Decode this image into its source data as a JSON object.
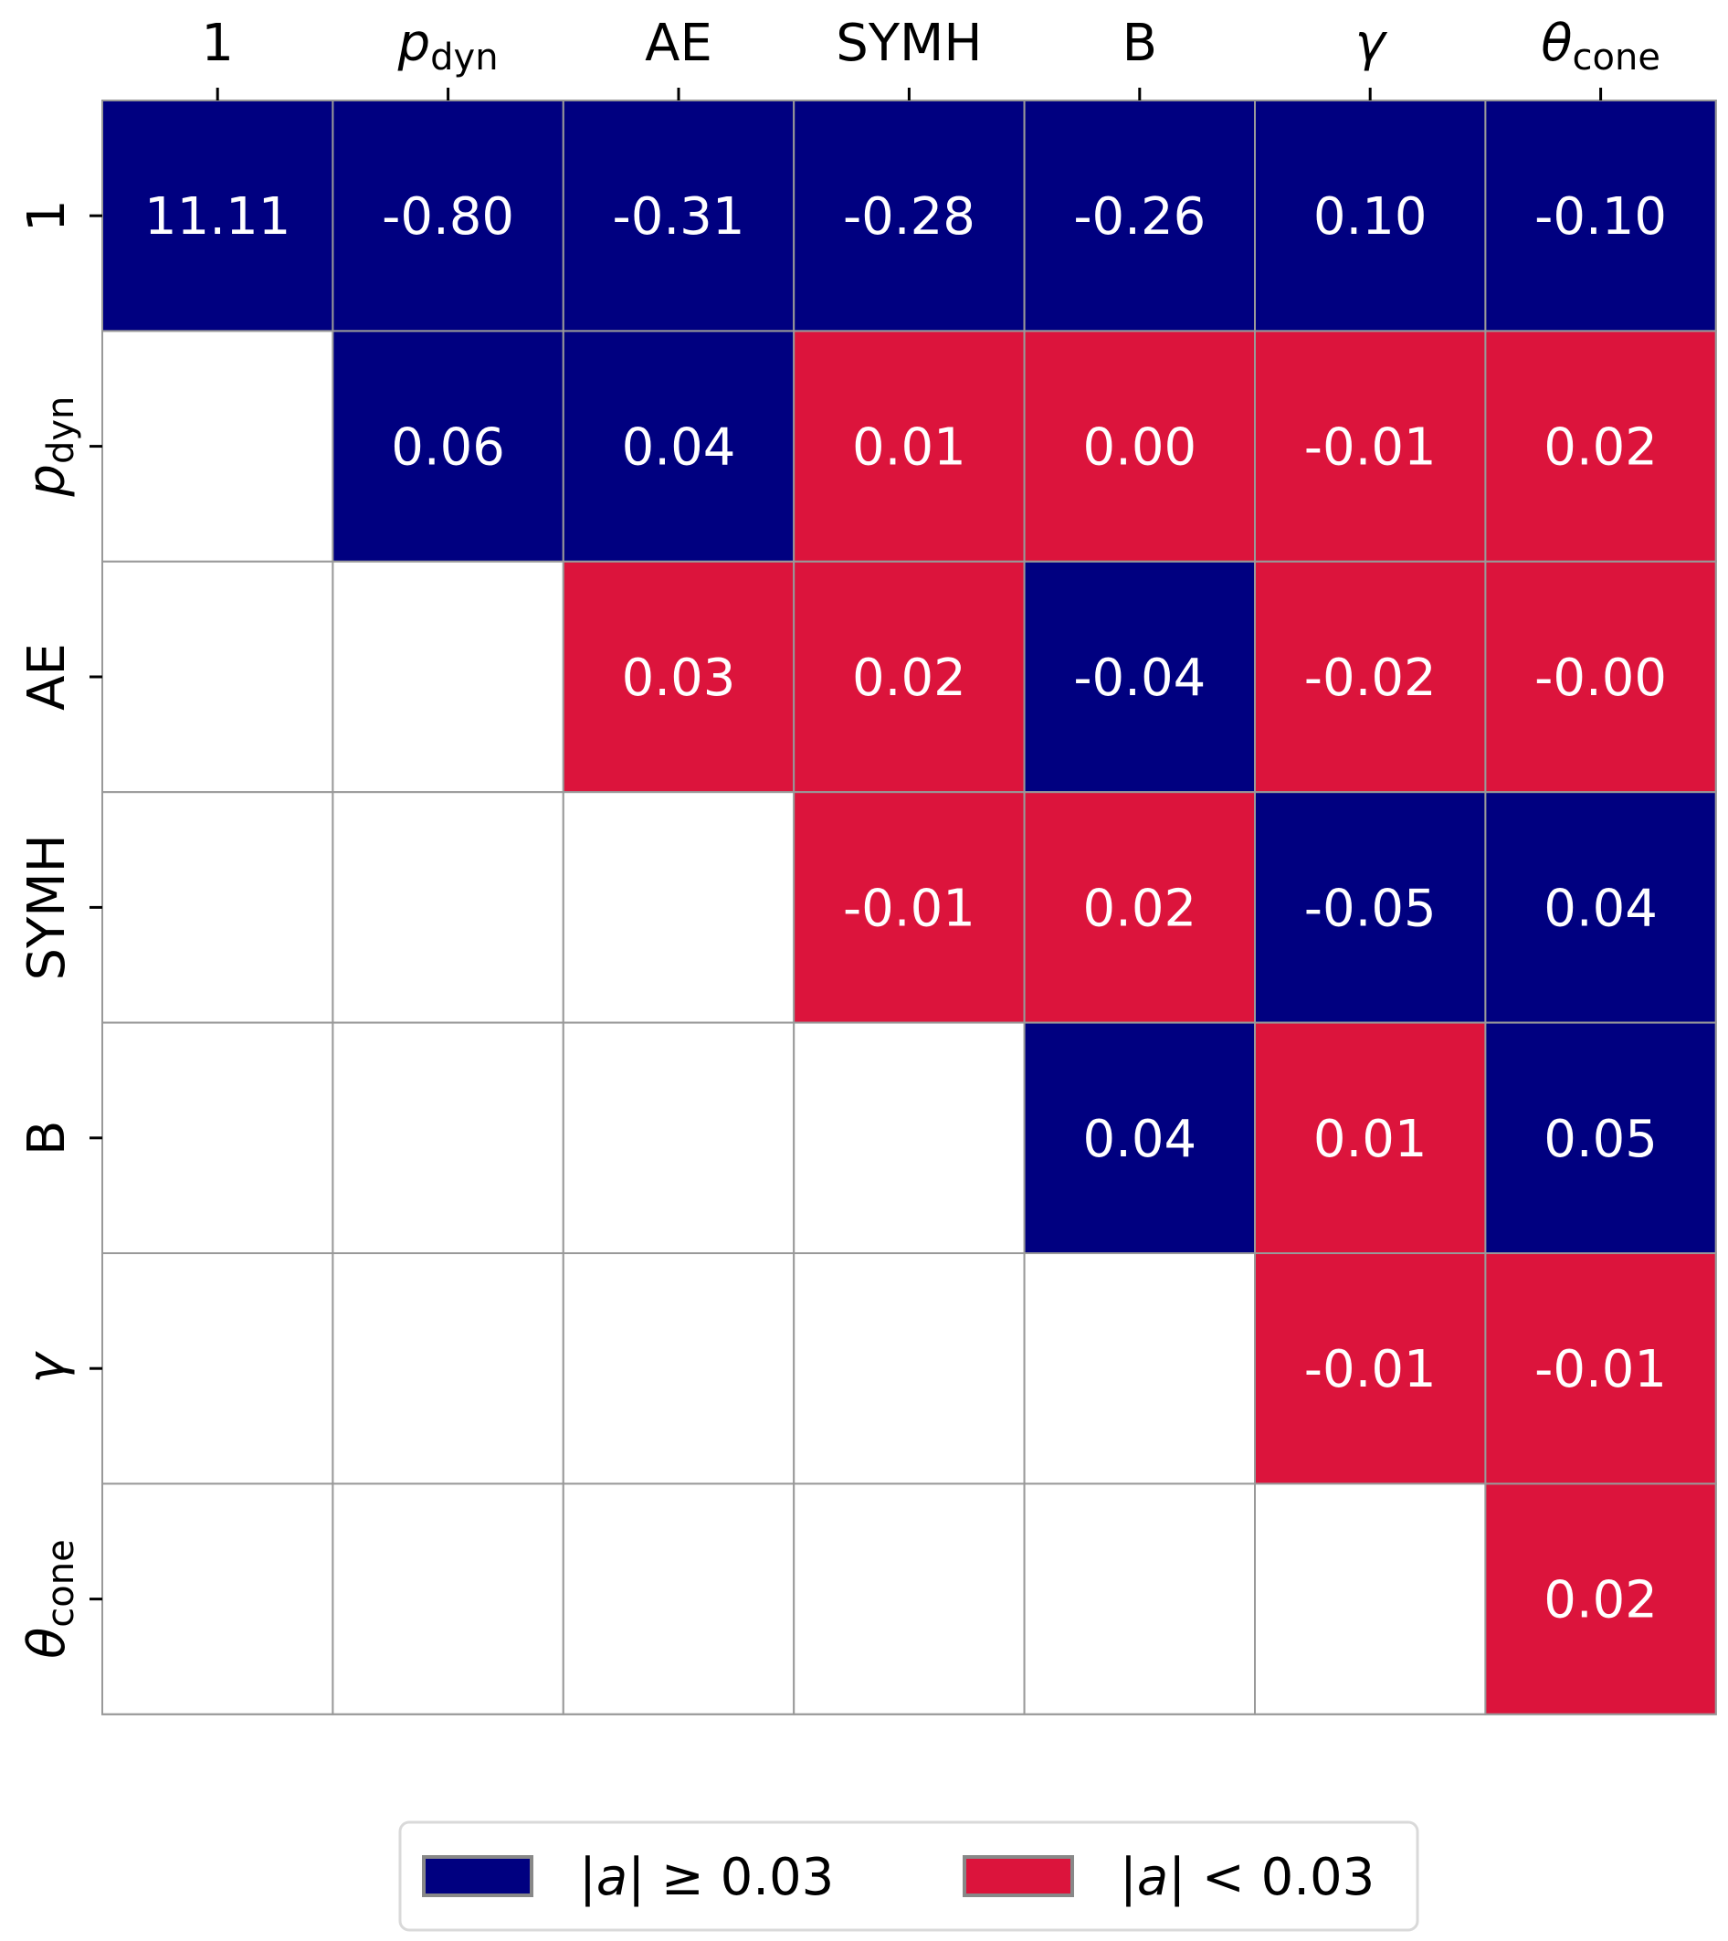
{
  "chart_data": {
    "type": "heatmap",
    "title": "",
    "row_labels": [
      {
        "main": "1",
        "sub": ""
      },
      {
        "main": "p",
        "sub": "dyn",
        "italic": true
      },
      {
        "main": "AE",
        "sub": ""
      },
      {
        "main": "SYMH",
        "sub": ""
      },
      {
        "main": "B",
        "sub": ""
      },
      {
        "main": "γ",
        "sub": "",
        "italic": true
      },
      {
        "main": "θ",
        "sub": "cone",
        "italic": true
      }
    ],
    "col_labels": [
      {
        "main": "1",
        "sub": ""
      },
      {
        "main": "p",
        "sub": "dyn",
        "italic": true
      },
      {
        "main": "AE",
        "sub": ""
      },
      {
        "main": "SYMH",
        "sub": ""
      },
      {
        "main": "B",
        "sub": ""
      },
      {
        "main": "γ",
        "sub": "",
        "italic": true
      },
      {
        "main": "θ",
        "sub": "cone",
        "italic": true
      }
    ],
    "values": [
      [
        "11.11",
        "-0.80",
        "-0.31",
        "-0.28",
        "-0.26",
        "0.10",
        "-0.10"
      ],
      [
        null,
        "0.06",
        "0.04",
        "0.01",
        "0.00",
        "-0.01",
        "0.02"
      ],
      [
        null,
        null,
        "0.03",
        "0.02",
        "-0.04",
        "-0.02",
        "-0.00"
      ],
      [
        null,
        null,
        null,
        "-0.01",
        "0.02",
        "-0.05",
        "0.04"
      ],
      [
        null,
        null,
        null,
        null,
        "0.04",
        "0.01",
        "0.05"
      ],
      [
        null,
        null,
        null,
        null,
        null,
        "-0.01",
        "-0.01"
      ],
      [
        null,
        null,
        null,
        null,
        null,
        null,
        "0.02"
      ]
    ],
    "categories_matrix": [
      [
        "high",
        "high",
        "high",
        "high",
        "high",
        "high",
        "high"
      ],
      [
        null,
        "high",
        "high",
        "low",
        "low",
        "low",
        "low"
      ],
      [
        null,
        null,
        "low",
        "low",
        "high",
        "low",
        "low"
      ],
      [
        null,
        null,
        null,
        "low",
        "low",
        "high",
        "high"
      ],
      [
        null,
        null,
        null,
        null,
        "high",
        "low",
        "high"
      ],
      [
        null,
        null,
        null,
        null,
        null,
        "low",
        "low"
      ],
      [
        null,
        null,
        null,
        null,
        null,
        null,
        "low"
      ]
    ],
    "legend": {
      "placement": "bottom-center",
      "entries": [
        {
          "key": "high",
          "label_var": "a",
          "label_rest": "≥ 0.03",
          "color": "#000080"
        },
        {
          "key": "low",
          "label_var": "a",
          "label_rest": "< 0.03",
          "color": "#DC143C"
        }
      ]
    },
    "colors": {
      "high": "#000080",
      "low": "#DC143C",
      "empty": "#ffffff",
      "grid": "#999999"
    }
  }
}
